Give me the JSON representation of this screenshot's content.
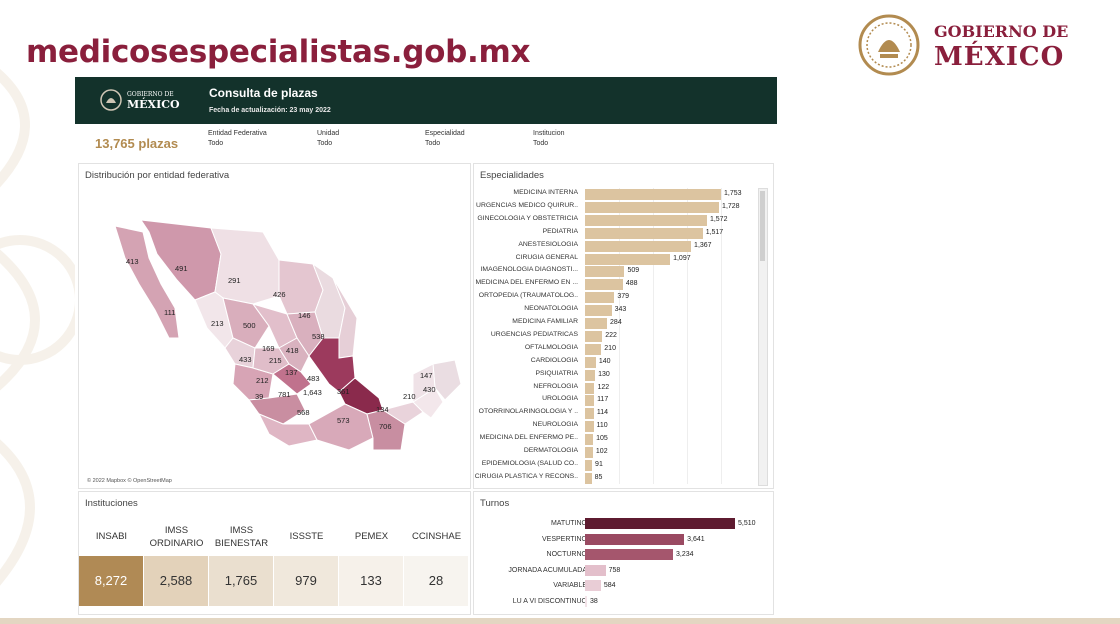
{
  "site_url": "medicosespecialistas.gob.mx",
  "gov_logo": {
    "line1": "GOBIERNO DE",
    "line2": "MÉXICO"
  },
  "colors": {
    "brand": "#8a1f3c",
    "header_bg": "#13322b",
    "accent_gold": "#b28b50",
    "bar_gold": "#dcc4a0"
  },
  "dashboard": {
    "logo_line1": "GOBIERNO DE",
    "logo_line2": "MÉXICO",
    "title": "Consulta de plazas",
    "updated": "Fecha de actualización: 23 may 2022",
    "total": "13,765 plazas",
    "filters": [
      {
        "label": "Entidad Federativa",
        "value": "Todo"
      },
      {
        "label": "Unidad",
        "value": "Todo"
      },
      {
        "label": "Especialidad",
        "value": "Todo"
      },
      {
        "label": "Institucion",
        "value": "Todo"
      }
    ]
  },
  "map": {
    "title": "Distribución por entidad federativa",
    "copyright": "© 2022 Mapbox © OpenStreetMap",
    "labels": [
      "413",
      "491",
      "291",
      "426",
      "111",
      "213",
      "500",
      "146",
      "538",
      "169",
      "418",
      "433",
      "215",
      "137",
      "483",
      "212",
      "39",
      "781",
      "1,643",
      "361",
      "147",
      "430",
      "210",
      "568",
      "573",
      "134",
      "706"
    ]
  },
  "instituciones": {
    "title": "Instituciones",
    "items": [
      {
        "name": "INSABI",
        "value": "8,272"
      },
      {
        "name": "IMSS ORDINARIO",
        "value": "2,588"
      },
      {
        "name": "IMSS BIENESTAR",
        "value": "1,765"
      },
      {
        "name": "ISSSTE",
        "value": "979"
      },
      {
        "name": "PEMEX",
        "value": "133"
      },
      {
        "name": "CCINSHAE",
        "value": "28"
      }
    ]
  },
  "especialidades": {
    "title": "Especialidades",
    "items": [
      {
        "name": "MEDICINA INTERNA",
        "value": 1753,
        "label": "1,753"
      },
      {
        "name": "URGENCIAS MEDICO QUIRUR..",
        "value": 1728,
        "label": "1,728"
      },
      {
        "name": "GINECOLOGIA Y OBSTETRICIA",
        "value": 1572,
        "label": "1,572"
      },
      {
        "name": "PEDIATRIA",
        "value": 1517,
        "label": "1,517"
      },
      {
        "name": "ANESTESIOLOGIA",
        "value": 1367,
        "label": "1,367"
      },
      {
        "name": "CIRUGIA GENERAL",
        "value": 1097,
        "label": "1,097"
      },
      {
        "name": "IMAGENOLOGIA DIAGNOSTI...",
        "value": 509,
        "label": "509"
      },
      {
        "name": "MEDICINA DEL ENFERMO EN ...",
        "value": 488,
        "label": "488"
      },
      {
        "name": "ORTOPEDIA (TRAUMATOLOG..",
        "value": 379,
        "label": "379"
      },
      {
        "name": "NEONATOLOGIA",
        "value": 343,
        "label": "343"
      },
      {
        "name": "MEDICINA FAMILIAR",
        "value": 284,
        "label": "284"
      },
      {
        "name": "URGENCIAS PEDIATRICAS",
        "value": 222,
        "label": "222"
      },
      {
        "name": "OFTALMOLOGIA",
        "value": 210,
        "label": "210"
      },
      {
        "name": "CARDIOLOGIA",
        "value": 140,
        "label": "140"
      },
      {
        "name": "PSIQUIATRIA",
        "value": 130,
        "label": "130"
      },
      {
        "name": "NEFROLOGIA",
        "value": 122,
        "label": "122"
      },
      {
        "name": "UROLOGIA",
        "value": 117,
        "label": "117"
      },
      {
        "name": "OTORRINOLARINGOLOGIA Y ..",
        "value": 114,
        "label": "114"
      },
      {
        "name": "NEUROLOGIA",
        "value": 110,
        "label": "110"
      },
      {
        "name": "MEDICINA DEL ENFERMO PE..",
        "value": 105,
        "label": "105"
      },
      {
        "name": "DERMATOLOGIA",
        "value": 102,
        "label": "102"
      },
      {
        "name": "EPIDEMIOLOGIA (SALUD CO..",
        "value": 91,
        "label": "91"
      },
      {
        "name": "CIRUGIA PLASTICA Y RECONS..",
        "value": 85,
        "label": "85"
      }
    ]
  },
  "turnos": {
    "title": "Turnos",
    "items": [
      {
        "name": "MATUTINO",
        "value": 5510,
        "label": "5,510",
        "color": "#5e1b30"
      },
      {
        "name": "VESPERTINO",
        "value": 3641,
        "label": "3,641",
        "color": "#9a4a62"
      },
      {
        "name": "NOCTURNO",
        "value": 3234,
        "label": "3,234",
        "color": "#a5566d"
      },
      {
        "name": "JORNADA ACUMULADA",
        "value": 758,
        "label": "758",
        "color": "#e3bfcb"
      },
      {
        "name": "VARIABLE",
        "value": 584,
        "label": "584",
        "color": "#e9cdd6"
      },
      {
        "name": "LU A VI DISCONTINUO",
        "value": 38,
        "label": "38",
        "color": "#f2e2e7"
      }
    ]
  }
}
